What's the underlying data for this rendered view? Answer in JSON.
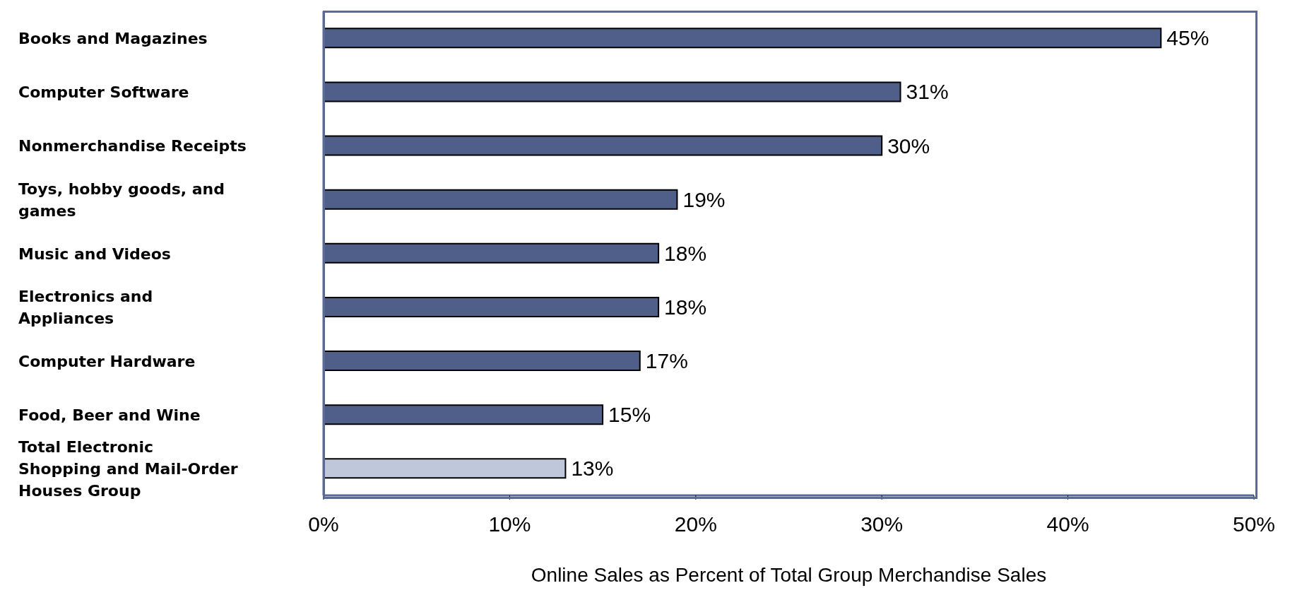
{
  "chart_data": {
    "type": "bar",
    "orientation": "horizontal",
    "xlabel": "Online Sales as Percent of Total Group Merchandise Sales",
    "categories": [
      "Books and Magazines",
      "Computer Software",
      "Nonmerchandise Receipts",
      "Toys, hobby goods, and games",
      "Music and Videos",
      "Electronics and Appliances",
      "Computer Hardware",
      "Food, Beer and Wine",
      "Total Electronic Shopping and Mail-Order Houses Group"
    ],
    "values": [
      45,
      31,
      30,
      19,
      18,
      18,
      17,
      15,
      13
    ],
    "colors": [
      "#4f5f8a",
      "#4f5f8a",
      "#4f5f8a",
      "#4f5f8a",
      "#4f5f8a",
      "#4f5f8a",
      "#4f5f8a",
      "#4f5f8a",
      "#bfc7db"
    ],
    "value_labels": [
      "45%",
      "31%",
      "30%",
      "19%",
      "18%",
      "18%",
      "17%",
      "15%",
      "13%"
    ],
    "xlim": [
      0,
      50
    ],
    "xticks": [
      {
        "value": 0,
        "label": "0%"
      },
      {
        "value": 10,
        "label": "10%"
      },
      {
        "value": 20,
        "label": "20%"
      },
      {
        "value": 30,
        "label": "30%"
      },
      {
        "value": 40,
        "label": "40%"
      },
      {
        "value": 50,
        "label": "50%"
      }
    ],
    "grid": false,
    "legend": false
  }
}
